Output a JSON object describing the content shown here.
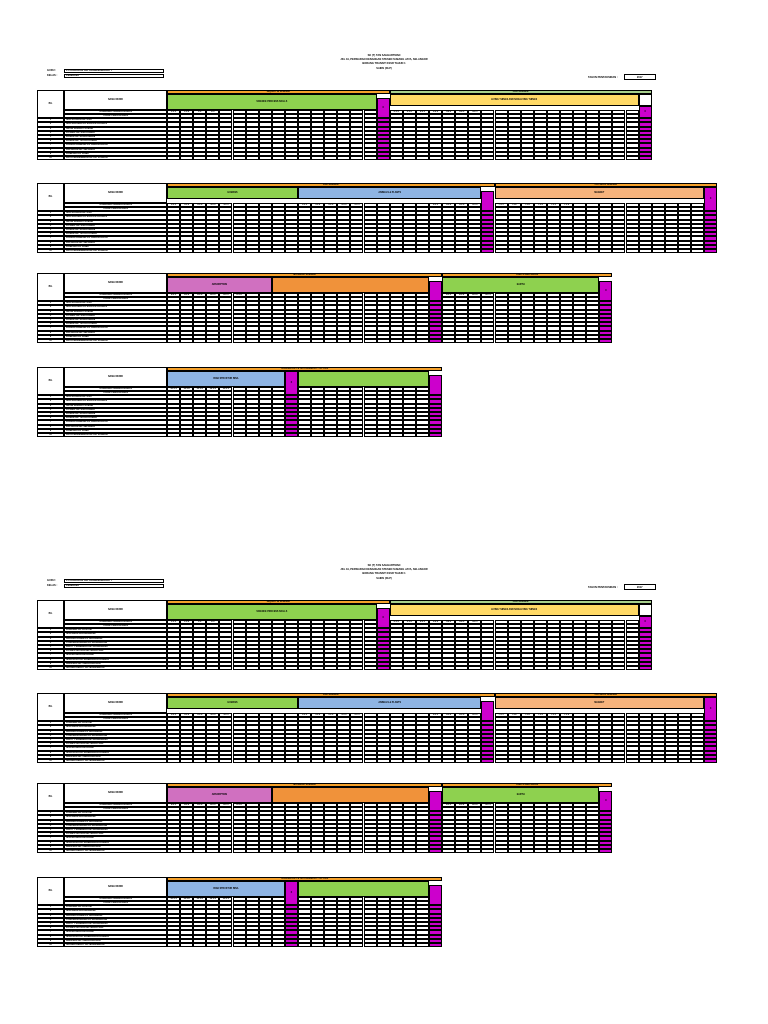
{
  "header": {
    "line1": "SK (T) TAN SAHHARTMAN",
    "line2": "JKL 19, PERSIARAN KENANGAN STESEN SUBANG JAYA, SELANGOR",
    "line3": "BORANG TRANSIT KSSR TAHUN 1",
    "line4": "SAINS (DLP)"
  },
  "meta": {
    "guru_label": "GURU :",
    "kelas_label": "KELAS :",
    "guru_value": "PU KODALAN A/K KRISHNAMOORTY",
    "kelas_value": "CENDANA",
    "tahun_label": "TAHUN PENTAKSIRAN :",
    "tahun_value": "2017"
  },
  "labels": {
    "bil": "BIL",
    "nama": "NAMA MURID",
    "sp": "STANDARD PEMBELAJARAN",
    "tp": "TAHAP PENGUASAAN",
    "avg": "X"
  },
  "colors": {
    "orange": "#F4A02A",
    "green": "#8ED14F",
    "yellow": "#FFD966",
    "blue": "#8EB4E3",
    "magenta": "#CC00CC",
    "pink": "#D070C0",
    "salmon": "#F6B37C",
    "apricot": "#F0923A",
    "lightgreen": "#A8D08D"
  },
  "sections": {
    "s1": {
      "left_title": "INQUIRY IN SCIENCE",
      "left_sub": "SCIENCE PROCESS SKILLS",
      "right_title": "LIFE SCIENCE",
      "right_sub": "LIVING THINGS AND NON-LIVING THINGS",
      "left_codes": [
        "1.1.1",
        "1.1.2",
        "1.3",
        "2.4"
      ],
      "right_codes": [
        "3.1.1",
        "3.1.2",
        "3.2.1",
        "3.2.2",
        "3.2.3",
        "3.2.4",
        "3.2.5"
      ]
    },
    "s2": {
      "top_left": "LIFE SCIENCE",
      "top_right": "PHYSICAL SCIENCE",
      "sub1": "HUMANS",
      "sub2": "ANIMALS & PLANTS",
      "sub3": "MAGNET",
      "codes1": [
        "4.1.1",
        "4.1.2",
        "4.1.3",
        "4.1.4",
        "4.1.5"
      ],
      "codes2": [
        "5.1.1",
        "5.1.2",
        "5.1.3",
        "5.1.4",
        "5.1.5"
      ],
      "codes3": [
        "6.1.1",
        "6.1.2",
        "6.1.3",
        "6.1.4"
      ],
      "codes4": [
        "7.1.1",
        "7.1.2",
        "7.1.3",
        "7.1.4",
        "7.1.5",
        "7.1.6"
      ]
    },
    "s3": {
      "top_left": "MATERIAL SCIENCE",
      "top_right": "EARTH AND SPACE",
      "sub1": "ABSORPTION",
      "sub2": "EARTH",
      "codes1": [
        "8.1.1",
        "8.1.2",
        "8.1.3",
        "8.1.4",
        "8.1.5",
        "8.1.6"
      ],
      "codes2": [
        "9.1.1",
        "9.1.2",
        "9.1.3",
        "9.1.4"
      ]
    },
    "s4": {
      "top": "TECHNOLOGY & SUSTAINABILITY OF LIFE",
      "sub1": "BINA STRUKTUR BINA",
      "codes1": [
        "10.1.1",
        "10.1.2",
        "10.1.3",
        "10.1.4",
        "10.1.5"
      ]
    }
  },
  "pages": [
    {
      "students": [
        "NUR RAUDAH A/L SIVA",
        "NUR ERPINAH A/L MASTER ALAGAN",
        "ARVIN SARAHIT KUMAR",
        "PUSHAP A/P SIVA KUMAR",
        "KUMAR A/P SOCKLINGAM",
        "KUMAR A/P TIPULA KUMAR",
        "VARSHA RAMESH A/P GNAPRAKASH",
        "KALAIVANI A/P SELAMAN",
        "VANESSA A/P PANDI",
        "PRIYA MAGENDRAN A/L A/P SUBRAN"
      ]
    },
    {
      "students": [
        "JANANNA A/P RUSTAM",
        "SIVASHANI RUKANSHANN",
        "DHARSH RAHIM A/L SIVANARAN",
        "STARSHAVASHANI A/L KRISHNAKAN",
        "PRETTY SHARMILA A/P ARUNAGANS",
        "PUSHPA SUTHRA A/P MALAYSAN",
        "SIVANATHAN KALAIVANI",
        "SIVALATHA A/P KANNAKAAPURAMAN",
        "DHEVNRA A/P VIMALANATHAN",
        "SAKSHA REDDY A/P MAGENDRAN"
      ]
    }
  ]
}
